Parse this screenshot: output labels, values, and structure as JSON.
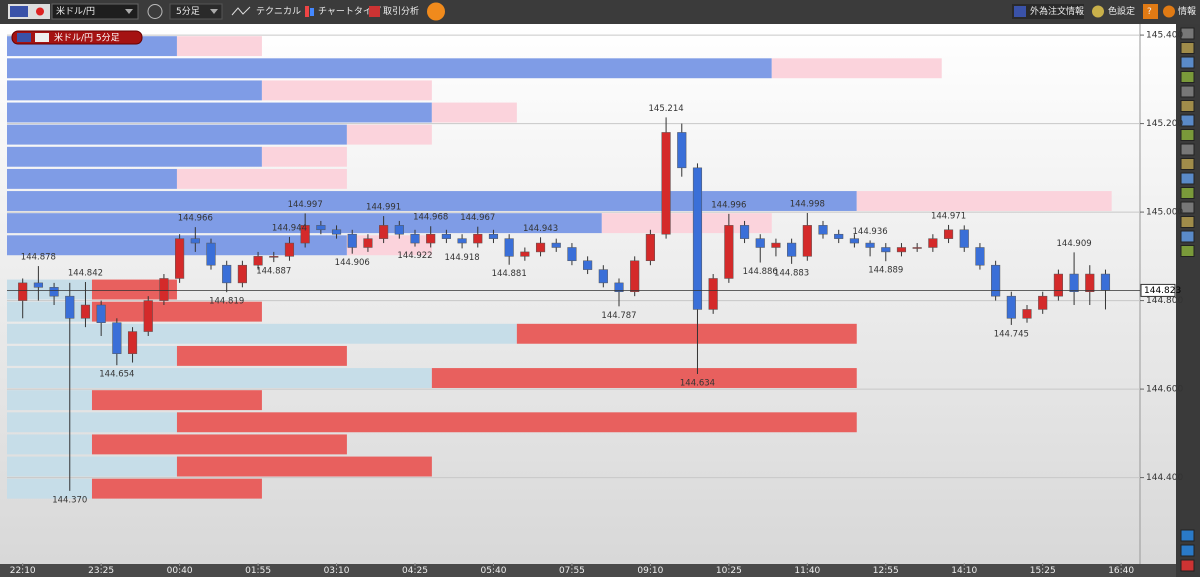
{
  "toolbar": {
    "pair": "米ドル/円",
    "timeframe": "5分足",
    "technical": "テクニカル",
    "chart_type": "チャートタイプ",
    "analysis": "取引分析",
    "order_info": "外為注文情報",
    "color_settings": "色設定",
    "help": "?",
    "info": "情報"
  },
  "chart_label": "米ドル/円 5分足",
  "chart_data": {
    "type": "candlestick",
    "up_color": "#d42a2a",
    "down_color": "#3a6fd8",
    "open": [
      144.8,
      144.84,
      144.83,
      144.81,
      144.76,
      144.79,
      144.75,
      144.68,
      144.73,
      144.8,
      144.85,
      144.94,
      144.93,
      144.88,
      144.84,
      144.88,
      144.9,
      144.9,
      144.93,
      144.97,
      144.96,
      144.95,
      144.92,
      144.94,
      144.97,
      144.95,
      144.93,
      144.95,
      144.94,
      144.93,
      144.95,
      144.94,
      144.9,
      144.91,
      144.93,
      144.92,
      144.89,
      144.87,
      144.84,
      144.82,
      144.89,
      144.95,
      145.18,
      145.1,
      144.78,
      144.85,
      144.97,
      144.94,
      144.92,
      144.93,
      144.9,
      144.97,
      144.95,
      144.94,
      144.93,
      144.92,
      144.91,
      144.92,
      144.92,
      144.94,
      144.96,
      144.92,
      144.88,
      144.81,
      144.76,
      144.78,
      144.81,
      144.86,
      144.82,
      144.86
    ],
    "high": [
      144.85,
      144.878,
      144.84,
      144.84,
      144.842,
      144.8,
      144.76,
      144.74,
      144.81,
      144.86,
      144.95,
      144.966,
      144.94,
      144.89,
      144.89,
      144.91,
      144.91,
      144.944,
      144.997,
      144.98,
      144.97,
      144.96,
      144.95,
      144.991,
      144.98,
      144.96,
      144.968,
      144.96,
      144.95,
      144.967,
      144.96,
      144.95,
      144.92,
      144.943,
      144.94,
      144.93,
      144.9,
      144.88,
      144.85,
      144.9,
      144.96,
      145.214,
      145.2,
      145.11,
      144.86,
      144.996,
      144.98,
      144.95,
      144.94,
      144.94,
      144.998,
      144.98,
      144.96,
      144.95,
      144.936,
      144.93,
      144.93,
      144.93,
      144.95,
      144.971,
      144.97,
      144.93,
      144.89,
      144.82,
      144.79,
      144.82,
      144.87,
      144.909,
      144.88,
      144.87
    ],
    "low": [
      144.76,
      144.8,
      144.79,
      144.37,
      144.74,
      144.72,
      144.654,
      144.66,
      144.72,
      144.79,
      144.84,
      144.91,
      144.87,
      144.819,
      144.83,
      144.87,
      144.887,
      144.89,
      144.92,
      144.95,
      144.94,
      144.906,
      144.91,
      144.93,
      144.94,
      144.922,
      144.92,
      144.93,
      144.918,
      144.92,
      144.93,
      144.881,
      144.89,
      144.9,
      144.91,
      144.88,
      144.86,
      144.83,
      144.787,
      144.81,
      144.88,
      144.94,
      145.08,
      144.634,
      144.77,
      144.84,
      144.93,
      144.886,
      144.9,
      144.883,
      144.89,
      144.94,
      144.93,
      144.92,
      144.9,
      144.889,
      144.9,
      144.91,
      144.91,
      144.93,
      144.91,
      144.87,
      144.8,
      144.745,
      144.75,
      144.77,
      144.8,
      144.79,
      144.79,
      144.78
    ],
    "close": [
      144.84,
      144.83,
      144.81,
      144.76,
      144.79,
      144.75,
      144.68,
      144.73,
      144.8,
      144.85,
      144.94,
      144.93,
      144.88,
      144.84,
      144.88,
      144.9,
      144.9,
      144.93,
      144.97,
      144.96,
      144.95,
      144.92,
      144.94,
      144.97,
      144.95,
      144.93,
      144.95,
      144.94,
      144.93,
      144.95,
      144.94,
      144.9,
      144.91,
      144.93,
      144.92,
      144.89,
      144.87,
      144.84,
      144.82,
      144.89,
      144.95,
      145.18,
      145.1,
      144.78,
      144.85,
      144.97,
      144.94,
      144.92,
      144.93,
      144.9,
      144.97,
      144.95,
      144.94,
      144.93,
      144.92,
      144.91,
      144.92,
      144.92,
      144.94,
      144.96,
      144.92,
      144.88,
      144.81,
      144.76,
      144.78,
      144.81,
      144.86,
      144.82,
      144.86,
      144.823
    ],
    "xlim": [
      -1,
      71.2
    ],
    "xticks": [
      {
        "value": 0,
        "label": "22:10"
      },
      {
        "value": 5,
        "label": "23:25"
      },
      {
        "value": 10,
        "label": "00:40"
      },
      {
        "value": 15,
        "label": "01:55"
      },
      {
        "value": 20,
        "label": "03:10"
      },
      {
        "value": 25,
        "label": "04:25"
      },
      {
        "value": 30,
        "label": "05:40"
      },
      {
        "value": 35,
        "label": "07:55"
      },
      {
        "value": 40,
        "label": "09:10"
      },
      {
        "value": 45,
        "label": "10:25"
      },
      {
        "value": 50,
        "label": "11:40"
      },
      {
        "value": 55,
        "label": "12:55"
      },
      {
        "value": 60,
        "label": "14:10"
      },
      {
        "value": 65,
        "label": "15:25"
      },
      {
        "value": 70,
        "label": "16:40"
      }
    ],
    "ylim": [
      144.207,
      145.416
    ],
    "yticks": [
      {
        "value": 144.4,
        "label": "144.400"
      },
      {
        "value": 144.6,
        "label": "144.600"
      },
      {
        "value": 144.8,
        "label": "144.800"
      },
      {
        "value": 145.0,
        "label": "145.000"
      },
      {
        "value": 145.2,
        "label": "145.200"
      },
      {
        "value": 145.4,
        "label": "145.400"
      }
    ],
    "grid": true,
    "annotations": [
      {
        "candle": 1,
        "field": "high",
        "label": "144.878"
      },
      {
        "candle": 4,
        "field": "high",
        "label": "144.842"
      },
      {
        "candle": 3,
        "field": "low",
        "label": "144.370"
      },
      {
        "candle": 6,
        "field": "low",
        "label": "144.654"
      },
      {
        "candle": 11,
        "field": "high",
        "label": "144.966"
      },
      {
        "candle": 13,
        "field": "low",
        "label": "144.819"
      },
      {
        "candle": 16,
        "field": "low",
        "label": "144.887"
      },
      {
        "candle": 17,
        "field": "high",
        "label": "144.944"
      },
      {
        "candle": 18,
        "field": "high",
        "label": "144.997"
      },
      {
        "candle": 21,
        "field": "low",
        "label": "144.906"
      },
      {
        "candle": 23,
        "field": "high",
        "label": "144.991"
      },
      {
        "candle": 25,
        "field": "low",
        "label": "144.922"
      },
      {
        "candle": 26,
        "field": "high",
        "label": "144.968"
      },
      {
        "candle": 28,
        "field": "low",
        "label": "144.918"
      },
      {
        "candle": 29,
        "field": "high",
        "label": "144.967"
      },
      {
        "candle": 31,
        "field": "low",
        "label": "144.881"
      },
      {
        "candle": 33,
        "field": "high",
        "label": "144.943"
      },
      {
        "candle": 38,
        "field": "low",
        "label": "144.787"
      },
      {
        "candle": 41,
        "field": "high",
        "label": "145.214"
      },
      {
        "candle": 43,
        "field": "low",
        "label": "144.634"
      },
      {
        "candle": 45,
        "field": "high",
        "label": "144.996"
      },
      {
        "candle": 47,
        "field": "low",
        "label": "144.886"
      },
      {
        "candle": 49,
        "field": "low",
        "label": "144.883"
      },
      {
        "candle": 50,
        "field": "high",
        "label": "144.998"
      },
      {
        "candle": 54,
        "field": "high",
        "label": "144.936"
      },
      {
        "candle": 55,
        "field": "low",
        "label": "144.889"
      },
      {
        "candle": 59,
        "field": "high",
        "label": "144.971"
      },
      {
        "candle": 63,
        "field": "low",
        "label": "144.745"
      },
      {
        "candle": 67,
        "field": "high",
        "label": "144.909"
      }
    ],
    "order_book": {
      "xlim": [
        0,
        100
      ],
      "levels": [
        145.375,
        145.325,
        145.275,
        145.225,
        145.175,
        145.125,
        145.075,
        145.025,
        144.975,
        144.925,
        144.825,
        144.775,
        144.725,
        144.675,
        144.625,
        144.575,
        144.525,
        144.475,
        144.425,
        144.375
      ],
      "series": [
        {
          "color": "#7f9ce6",
          "values": [
            15,
            67.5,
            22.5,
            37.5,
            30,
            22.5,
            15,
            75,
            52.5,
            30,
            null,
            null,
            null,
            null,
            null,
            null,
            null,
            null,
            null,
            null
          ]
        },
        {
          "color": "#fbd3dc",
          "values": [
            7.5,
            15,
            15,
            7.5,
            7.5,
            7.5,
            15,
            22.5,
            15,
            7.5,
            null,
            null,
            null,
            null,
            null,
            null,
            null,
            null,
            null,
            null
          ]
        },
        {
          "color": "#c6dde8",
          "values": [
            null,
            null,
            null,
            null,
            null,
            null,
            null,
            null,
            null,
            null,
            7.5,
            7.5,
            45,
            15,
            37.5,
            7.5,
            15,
            7.5,
            15,
            7.5
          ]
        },
        {
          "color": "#e8605e",
          "values": [
            null,
            null,
            null,
            null,
            null,
            null,
            null,
            null,
            null,
            null,
            7.5,
            15,
            30,
            15,
            37.5,
            15,
            60,
            22.5,
            22.5,
            15
          ]
        }
      ]
    }
  }
}
